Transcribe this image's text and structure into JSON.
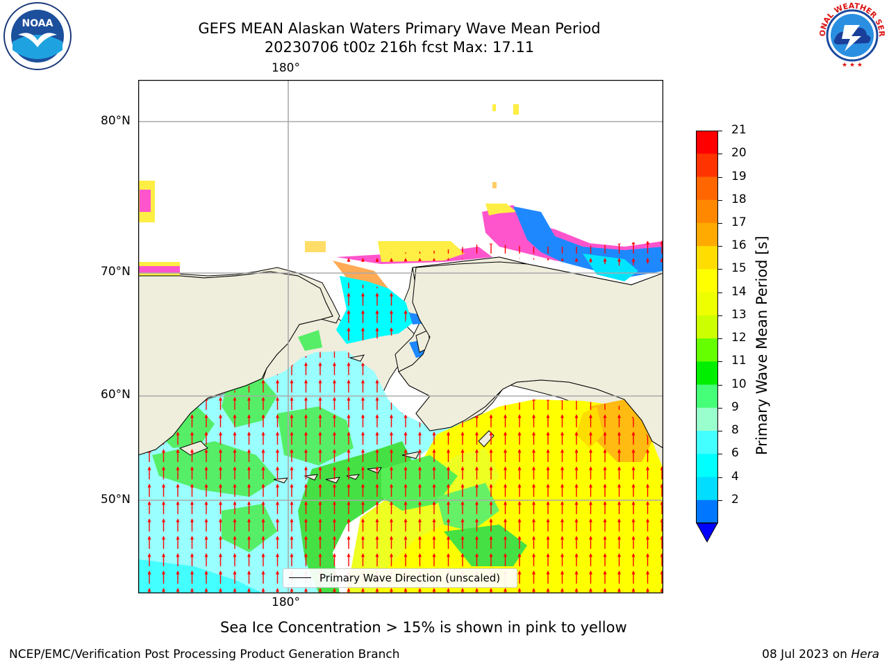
{
  "header": {
    "title_line1": "GEFS MEAN Alaskan Waters Primary Wave Mean Period",
    "title_line2": "20230706 t00z 216h fcst   Max: 17.11"
  },
  "logos": {
    "left": {
      "text": "NOAA",
      "ring_text": "NATIONAL OCEANIC AND ATMOSPHERIC ADMINISTRATION · U.S. DEPARTMENT OF COMMERCE"
    },
    "right": {
      "ring_text": "NATIONAL WEATHER SERVICE"
    }
  },
  "map": {
    "lon_label_top": "180°",
    "lon_label_bottom": "180°",
    "lat_labels": [
      "80°N",
      "70°N",
      "60°N",
      "50°N"
    ],
    "legend_label": "Primary Wave Direction (unscaled)",
    "arrow_color": "#ff0000",
    "land_color": "#efeddc"
  },
  "colorbar": {
    "label": "Primary Wave Mean Period [s]",
    "ticks": [
      "21",
      "20",
      "19",
      "18",
      "17",
      "16",
      "15",
      "14",
      "13",
      "12",
      "11",
      "10",
      "9",
      "8",
      "6",
      "4",
      "2"
    ],
    "colors": [
      "#ff0000",
      "#ff3300",
      "#ff6600",
      "#ff8800",
      "#ffaa00",
      "#ffdd00",
      "#ffff00",
      "#eeff00",
      "#ccff00",
      "#66ff00",
      "#00ee00",
      "#44ff77",
      "#99ffcc",
      "#44ffff",
      "#00ffff",
      "#00ddff",
      "#0077ff"
    ],
    "under_color": "#0000ff"
  },
  "note": "Sea Ice Concentration > 15% is shown in pink to yellow",
  "footer": {
    "left": "NCEP/EMC/Verification Post Processing Product Generation Branch",
    "date": "08 Jul 2023 on ",
    "host": "Hera"
  }
}
